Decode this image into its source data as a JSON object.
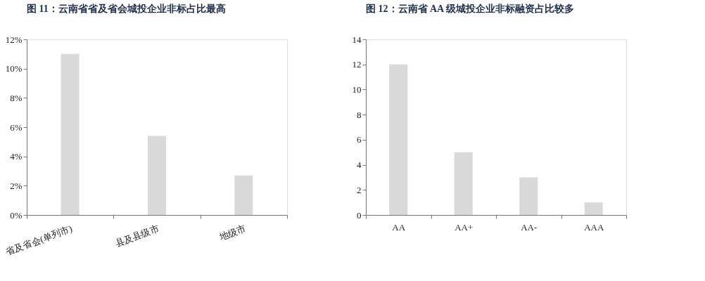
{
  "chart_data": [
    {
      "type": "bar",
      "title": "图 11：云南省省及省会城投企业非标占比最高",
      "categories": [
        "省及省会(单列市)",
        "县及县级市",
        "地级市"
      ],
      "values": [
        11,
        5.4,
        2.7
      ],
      "color": "#d9d9d9",
      "ylim": [
        0,
        12
      ],
      "yticks": [
        {
          "value": 0,
          "label": "0%"
        },
        {
          "value": 2,
          "label": "2%"
        },
        {
          "value": 4,
          "label": "4%"
        },
        {
          "value": 6,
          "label": "6%"
        },
        {
          "value": 8,
          "label": "8%"
        },
        {
          "value": 10,
          "label": "10%"
        },
        {
          "value": 12,
          "label": "12%"
        }
      ],
      "grid": false
    },
    {
      "type": "bar",
      "title": "图 12：云南省 AA 级城投企业非标融资占比较多",
      "categories": [
        "AA",
        "AA+",
        "AA-",
        "AAA"
      ],
      "values": [
        12,
        5,
        3,
        1
      ],
      "color": "#d9d9d9",
      "ylim": [
        0,
        14
      ],
      "yticks": [
        0,
        2,
        4,
        6,
        8,
        10,
        12,
        14
      ],
      "grid": false
    }
  ]
}
